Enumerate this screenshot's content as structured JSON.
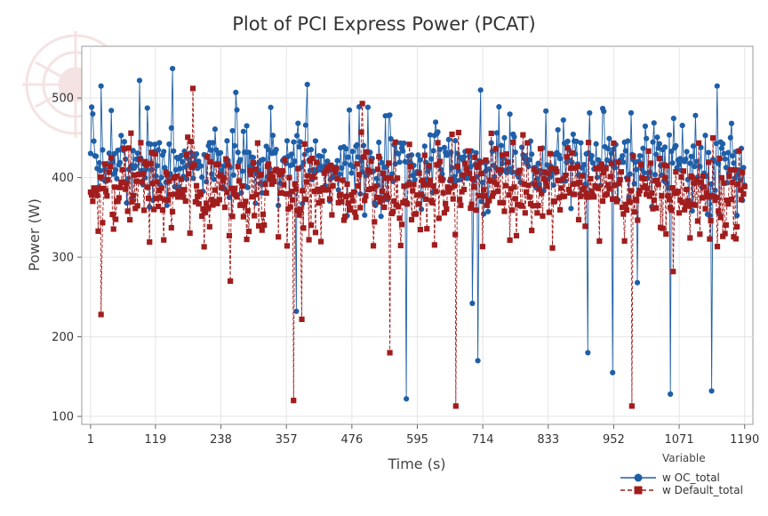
{
  "chart_data": {
    "type": "line",
    "title": "Plot of PCI Express Power (PCAT)",
    "xlabel": "Time (s)",
    "ylabel": "Power (W)",
    "x_ticks": [
      1,
      119,
      238,
      357,
      476,
      595,
      714,
      833,
      952,
      1071,
      1190
    ],
    "y_ticks": [
      100,
      200,
      300,
      400,
      500
    ],
    "xlim": [
      -15,
      1205
    ],
    "ylim": [
      90,
      565
    ],
    "grid": true,
    "legend": {
      "title": "Variable",
      "placement": "bottom-right"
    },
    "series": [
      {
        "name": "w OC_total",
        "color": "#1F5FA8",
        "marker": "circle",
        "line": "solid",
        "baseline": 420,
        "spread": 30,
        "x_range": [
          1,
          1190
        ],
        "points": 600,
        "seed": 7,
        "spikes": [
          {
            "x": 5,
            "y": 480
          },
          {
            "x": 20,
            "y": 515
          },
          {
            "x": 90,
            "y": 522
          },
          {
            "x": 150,
            "y": 537
          },
          {
            "x": 265,
            "y": 507
          },
          {
            "x": 375,
            "y": 232
          },
          {
            "x": 395,
            "y": 517
          },
          {
            "x": 575,
            "y": 122
          },
          {
            "x": 695,
            "y": 242
          },
          {
            "x": 705,
            "y": 170
          },
          {
            "x": 710,
            "y": 510
          },
          {
            "x": 905,
            "y": 180
          },
          {
            "x": 950,
            "y": 155
          },
          {
            "x": 995,
            "y": 268
          },
          {
            "x": 1055,
            "y": 128
          },
          {
            "x": 1130,
            "y": 132
          },
          {
            "x": 1140,
            "y": 515
          }
        ]
      },
      {
        "name": "w Default_total",
        "color": "#A11D1D",
        "marker": "square",
        "line": "dashed",
        "baseline": 385,
        "spread": 32,
        "x_range": [
          1,
          1190
        ],
        "points": 600,
        "seed": 13,
        "spikes": [
          {
            "x": 20,
            "y": 228
          },
          {
            "x": 187,
            "y": 512
          },
          {
            "x": 255,
            "y": 270
          },
          {
            "x": 370,
            "y": 120
          },
          {
            "x": 385,
            "y": 222
          },
          {
            "x": 495,
            "y": 493
          },
          {
            "x": 545,
            "y": 180
          },
          {
            "x": 665,
            "y": 113
          },
          {
            "x": 985,
            "y": 113
          },
          {
            "x": 1060,
            "y": 282
          }
        ]
      }
    ]
  }
}
